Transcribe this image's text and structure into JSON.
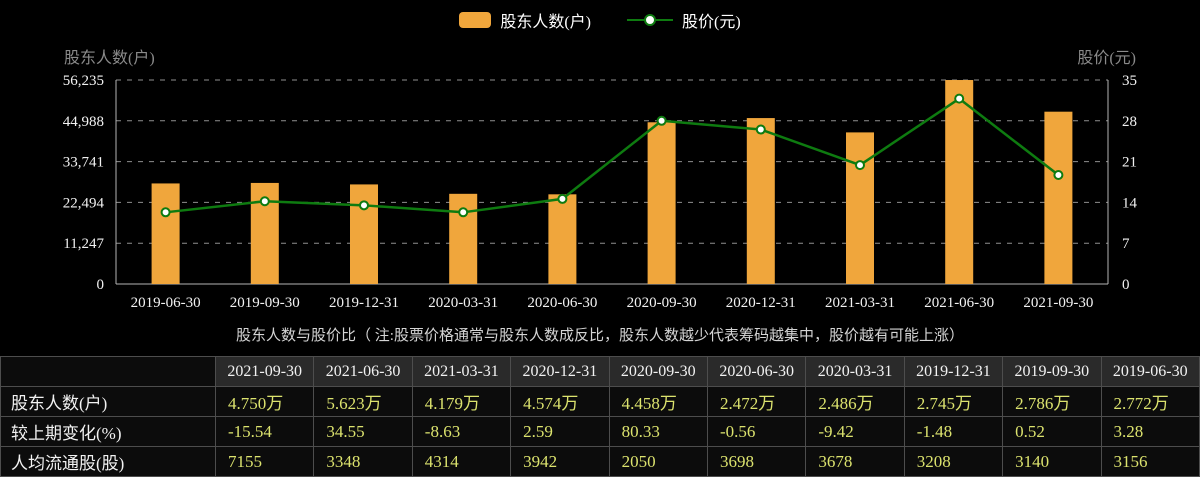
{
  "colors": {
    "background": "#000000",
    "bar": "#f0a63c",
    "line": "#0e7b10",
    "marker_fill": "#ffffff",
    "grid": "#8f8f8f",
    "axis_line": "#b5b5b5",
    "tick_text": "#f2f2f2",
    "axis_title": "#8a8a8a",
    "caption_text": "#d4d4d4",
    "table_value": "#dce36e",
    "table_text": "#f2f2f2",
    "table_border": "#4d4d4d",
    "table_header_bg": "#2a2a2a"
  },
  "legend": [
    {
      "label": "股东人数(户)",
      "marker": "bar-swatch"
    },
    {
      "label": "股价(元)",
      "marker": "line-dot"
    }
  ],
  "chart_data": {
    "type": "bar+line",
    "categories": [
      "2019-06-30",
      "2019-09-30",
      "2019-12-31",
      "2020-03-31",
      "2020-06-30",
      "2020-09-30",
      "2020-12-31",
      "2021-03-31",
      "2021-06-30",
      "2021-09-30"
    ],
    "series": [
      {
        "name": "股东人数(户)",
        "type": "bar",
        "y_axis": "left",
        "values": [
          27720,
          27860,
          27450,
          24860,
          24720,
          44580,
          45740,
          41790,
          56230,
          47500
        ]
      },
      {
        "name": "股价(元)",
        "type": "line",
        "y_axis": "right",
        "values": [
          12.3,
          14.2,
          13.5,
          12.3,
          14.6,
          28.0,
          26.5,
          20.4,
          31.8,
          18.7
        ]
      }
    ],
    "left_axis": {
      "title": "股东人数(户)",
      "tick_labels": [
        "56,235",
        "44,988",
        "33,741",
        "22,494",
        "11,247",
        "0"
      ],
      "min": 0,
      "max": 56235
    },
    "right_axis": {
      "title": "股价(元)",
      "tick_labels": [
        "35",
        "28",
        "21",
        "14",
        "7",
        "0"
      ],
      "min": 0,
      "max": 35
    },
    "grid": "dashed horizontal gridlines, black background, legend top center"
  },
  "caption": "股东人数与股价比（ 注:股票价格通常与股东人数成反比，股东人数越少代表筹码越集中，股价越有可能上涨）",
  "table": {
    "header": [
      "",
      "2021-09-30",
      "2021-06-30",
      "2021-03-31",
      "2020-12-31",
      "2020-09-30",
      "2020-06-30",
      "2020-03-31",
      "2019-12-31",
      "2019-09-30",
      "2019-06-30"
    ],
    "rows": [
      {
        "label": "股东人数(户)",
        "values": [
          "4.750万",
          "5.623万",
          "4.179万",
          "4.574万",
          "4.458万",
          "2.472万",
          "2.486万",
          "2.745万",
          "2.786万",
          "2.772万"
        ]
      },
      {
        "label": "较上期变化(%)",
        "values": [
          "-15.54",
          "34.55",
          "-8.63",
          "2.59",
          "80.33",
          "-0.56",
          "-9.42",
          "-1.48",
          "0.52",
          "3.28"
        ]
      },
      {
        "label": "人均流通股(股)",
        "values": [
          "7155",
          "3348",
          "4314",
          "3942",
          "2050",
          "3698",
          "3678",
          "3208",
          "3140",
          "3156"
        ]
      }
    ]
  }
}
